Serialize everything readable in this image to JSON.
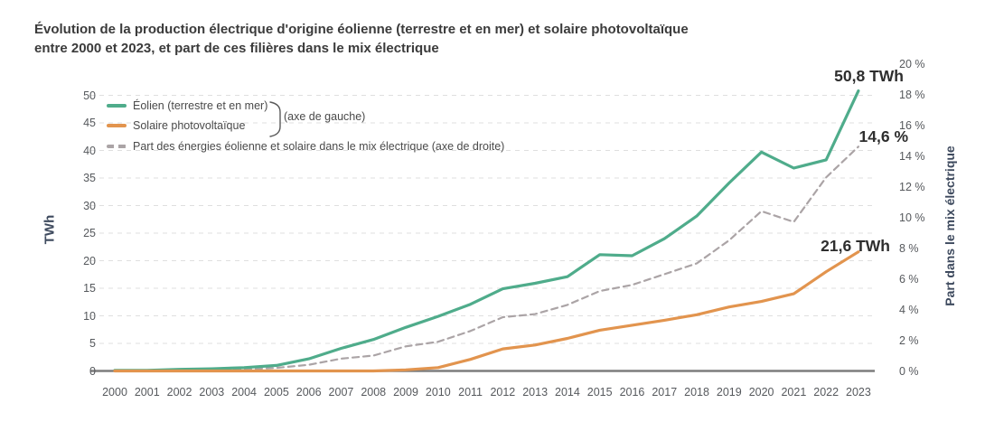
{
  "title": {
    "line1": "Évolution de la production électrique d'origine éolienne (terrestre et en mer) et solaire photovoltaïque",
    "line2": "entre 2000 et 2023, et part de ces filières dans le mix électrique"
  },
  "legend": {
    "eolien_label": "Éolien (terrestre et en mer)",
    "solaire_label": "Solaire photovoltaïque",
    "axe_gauche_label": "(axe de gauche)",
    "part_label": "Part des énergies éolienne et solaire dans le mix électrique (axe de droite)"
  },
  "axes": {
    "left_title": "TWh",
    "right_title": "Part dans le mix électrique",
    "left_ticks": [
      0,
      5,
      10,
      15,
      20,
      25,
      30,
      35,
      40,
      45,
      50
    ],
    "right_ticks": [
      "0 %",
      "2 %",
      "4 %",
      "6 %",
      "8 %",
      "10 %",
      "12 %",
      "14 %",
      "16 %",
      "18 %",
      "20 %"
    ]
  },
  "annotations": {
    "eolien_value_label": "50,8 TWh",
    "part_value_label": "14,6 %",
    "solaire_value_label": "21,6 TWh"
  },
  "colors": {
    "eolien": "#4fac8b",
    "solaire": "#e2944e",
    "part": "#aba4a6",
    "gridline": "#dfdfdf",
    "axis_line": "#7d7d7d",
    "tick_text": "#56595d",
    "axis_title_text": "#3e4a5e",
    "title_text": "#3b3b3b",
    "annotation_text": "#2e2e2e"
  },
  "chart_data": {
    "type": "line",
    "title": "Évolution de la production électrique d'origine éolienne (terrestre et en mer) et solaire photovoltaïque entre 2000 et 2023, et part de ces filières dans le mix électrique",
    "x": [
      2000,
      2001,
      2002,
      2003,
      2004,
      2005,
      2006,
      2007,
      2008,
      2009,
      2010,
      2011,
      2012,
      2013,
      2014,
      2015,
      2016,
      2017,
      2018,
      2019,
      2020,
      2021,
      2022,
      2023
    ],
    "series": [
      {
        "name": "Éolien (terrestre et en mer)",
        "axis": "left",
        "unit": "TWh",
        "style": "solid",
        "color_key": "eolien",
        "values": [
          0.1,
          0.1,
          0.3,
          0.4,
          0.6,
          1.0,
          2.2,
          4.1,
          5.7,
          7.9,
          9.9,
          12.1,
          14.9,
          15.9,
          17.1,
          21.1,
          20.9,
          24.0,
          28.1,
          34.1,
          39.7,
          36.8,
          38.3,
          50.8
        ],
        "end_label": "50,8 TWh"
      },
      {
        "name": "Solaire photovoltaïque",
        "axis": "left",
        "unit": "TWh",
        "style": "solid",
        "color_key": "solaire",
        "values": [
          0.0,
          0.0,
          0.0,
          0.0,
          0.0,
          0.0,
          0.0,
          0.0,
          0.0,
          0.2,
          0.6,
          2.1,
          4.0,
          4.7,
          5.9,
          7.4,
          8.3,
          9.2,
          10.2,
          11.6,
          12.6,
          14.0,
          18.0,
          21.6
        ],
        "end_label": "21,6 TWh"
      },
      {
        "name": "Part des énergies éolienne et solaire dans le mix électrique",
        "axis": "right",
        "unit": "%",
        "style": "dashed",
        "color_key": "part",
        "values": [
          0.0,
          0.0,
          0.1,
          0.1,
          0.1,
          0.2,
          0.4,
          0.8,
          1.0,
          1.6,
          1.9,
          2.6,
          3.5,
          3.7,
          4.3,
          5.2,
          5.6,
          6.3,
          7.0,
          8.5,
          10.4,
          9.7,
          12.6,
          14.6
        ],
        "end_label": "14,6 %"
      }
    ],
    "left_axis": {
      "label": "TWh",
      "range": [
        0,
        50
      ],
      "tick_step": 5
    },
    "right_axis": {
      "label": "Part dans le mix électrique",
      "range": [
        0,
        20
      ],
      "tick_step": 2
    },
    "grid": "horizontal-dashed",
    "legend_position": "top-left-inside"
  }
}
